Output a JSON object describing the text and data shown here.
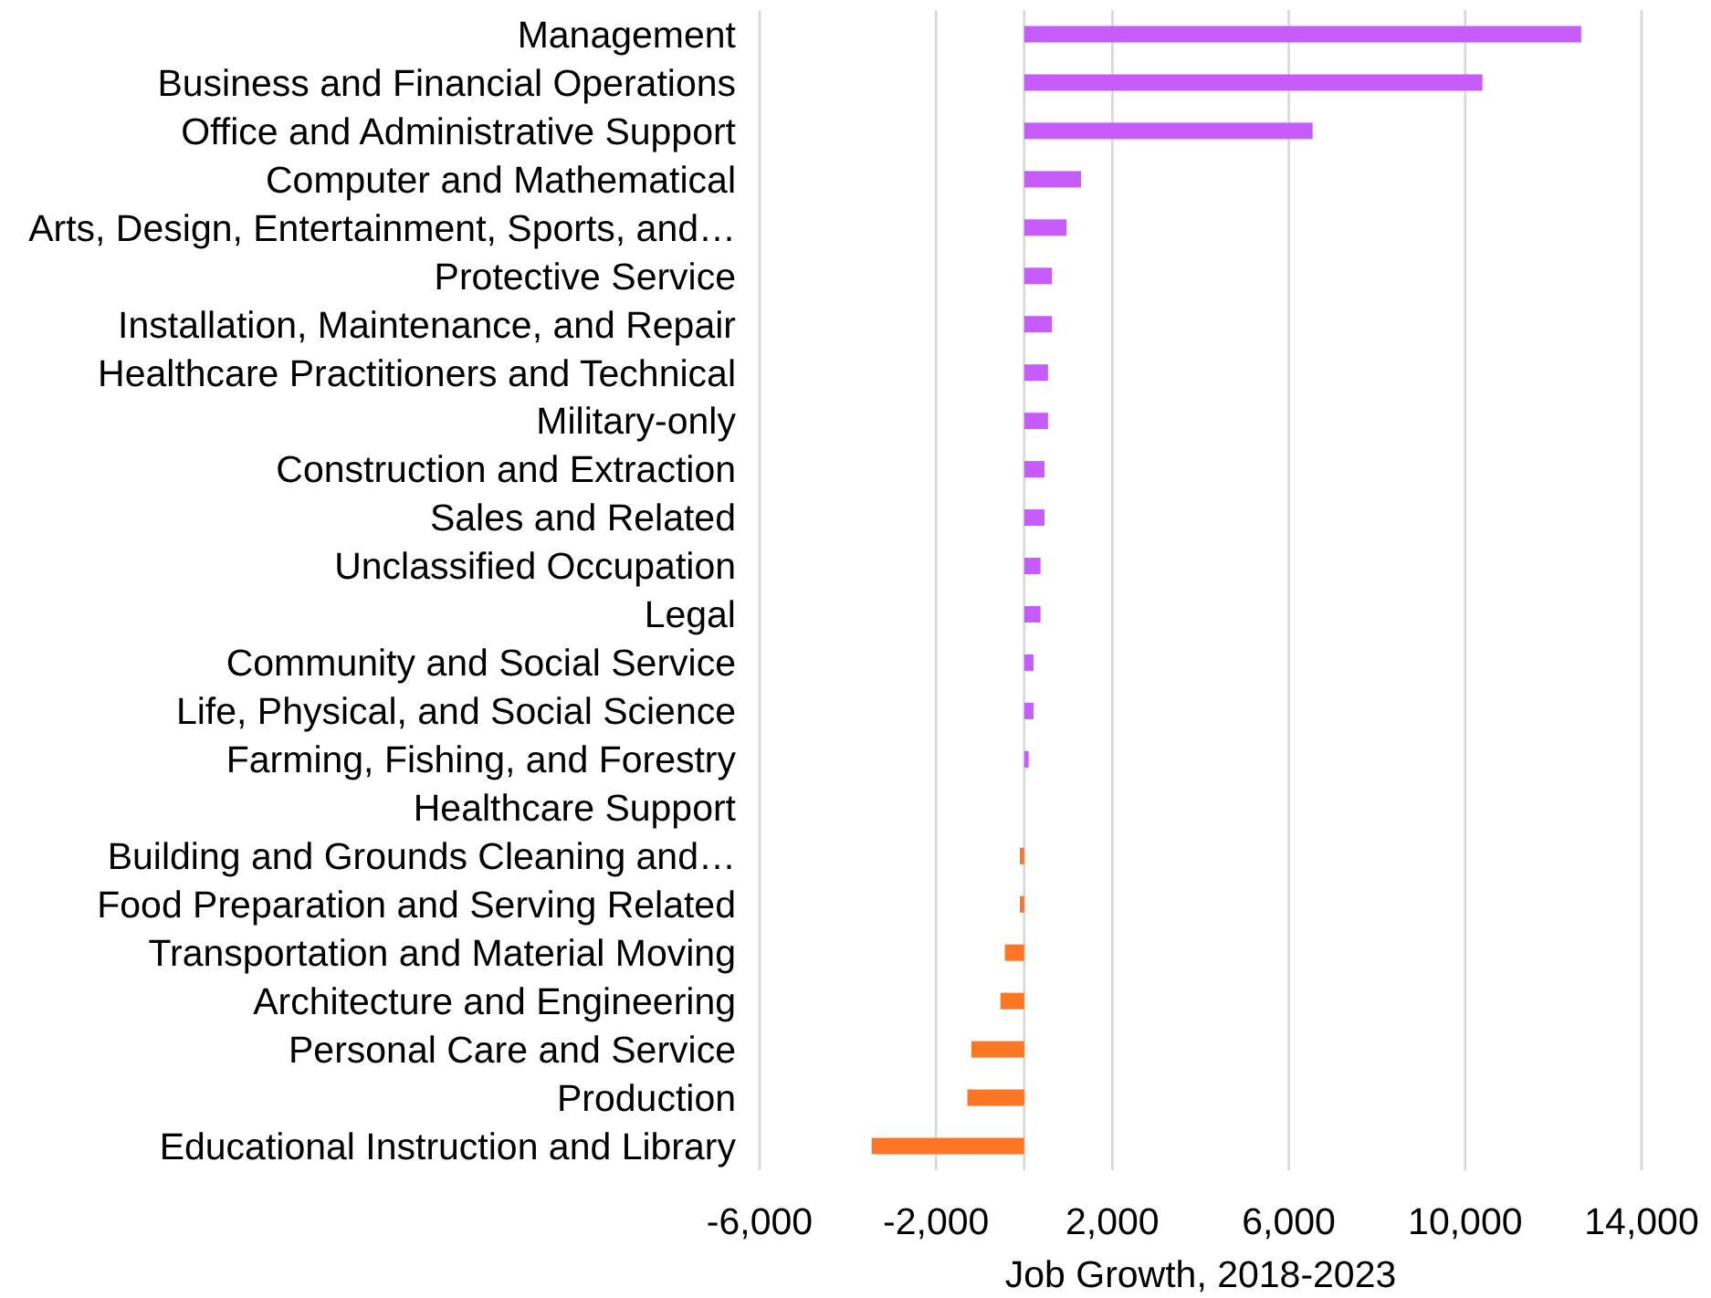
{
  "chart_data": {
    "type": "bar",
    "orientation": "horizontal",
    "xlabel": "Job Growth, 2018-2023",
    "categories": [
      "Management",
      "Business and Financial Operations",
      "Office and Administrative Support",
      "Computer and Mathematical",
      "Arts, Design, Entertainment, Sports, and…",
      "Protective Service",
      "Installation, Maintenance, and Repair",
      "Healthcare Practitioners and Technical",
      "Military-only",
      "Construction and Extraction",
      "Sales and Related",
      "Unclassified Occupation",
      "Legal",
      "Community and Social Service",
      "Life, Physical, and Social Science",
      "Farming, Fishing, and Forestry",
      "Healthcare Support",
      "Building and Grounds Cleaning and…",
      "Food Preparation and Serving Related",
      "Transportation and Material Moving",
      "Architecture and Engineering",
      "Personal Care and Service",
      "Production",
      "Educational Instruction and Library"
    ],
    "values": [
      12630,
      10390,
      6540,
      1290,
      960,
      630,
      630,
      540,
      540,
      460,
      460,
      370,
      370,
      210,
      210,
      100,
      0,
      -100,
      -100,
      -440,
      -540,
      -1200,
      -1290,
      -3460
    ],
    "colors": [
      "#c75cfc",
      "#c75cfc",
      "#c75cfc",
      "#c75cfc",
      "#c75cfc",
      "#c75cfc",
      "#c75cfc",
      "#c75cfc",
      "#c75cfc",
      "#c75cfc",
      "#c75cfc",
      "#c75cfc",
      "#c75cfc",
      "#c75cfc",
      "#c75cfc",
      "#c75cfc",
      "#c75cfc",
      "#fd7624",
      "#fd7624",
      "#fd7624",
      "#fd7624",
      "#fd7624",
      "#fd7624",
      "#fd7624"
    ],
    "xlim": [
      -6000,
      14000
    ],
    "xticks": [
      {
        "value": -6000,
        "label": "-6,000"
      },
      {
        "value": -2000,
        "label": "-2,000"
      },
      {
        "value": 2000,
        "label": "2,000"
      },
      {
        "value": 6000,
        "label": "6,000"
      },
      {
        "value": 10000,
        "label": "10,000"
      },
      {
        "value": 14000,
        "label": "14,000"
      }
    ],
    "grid": "x"
  }
}
